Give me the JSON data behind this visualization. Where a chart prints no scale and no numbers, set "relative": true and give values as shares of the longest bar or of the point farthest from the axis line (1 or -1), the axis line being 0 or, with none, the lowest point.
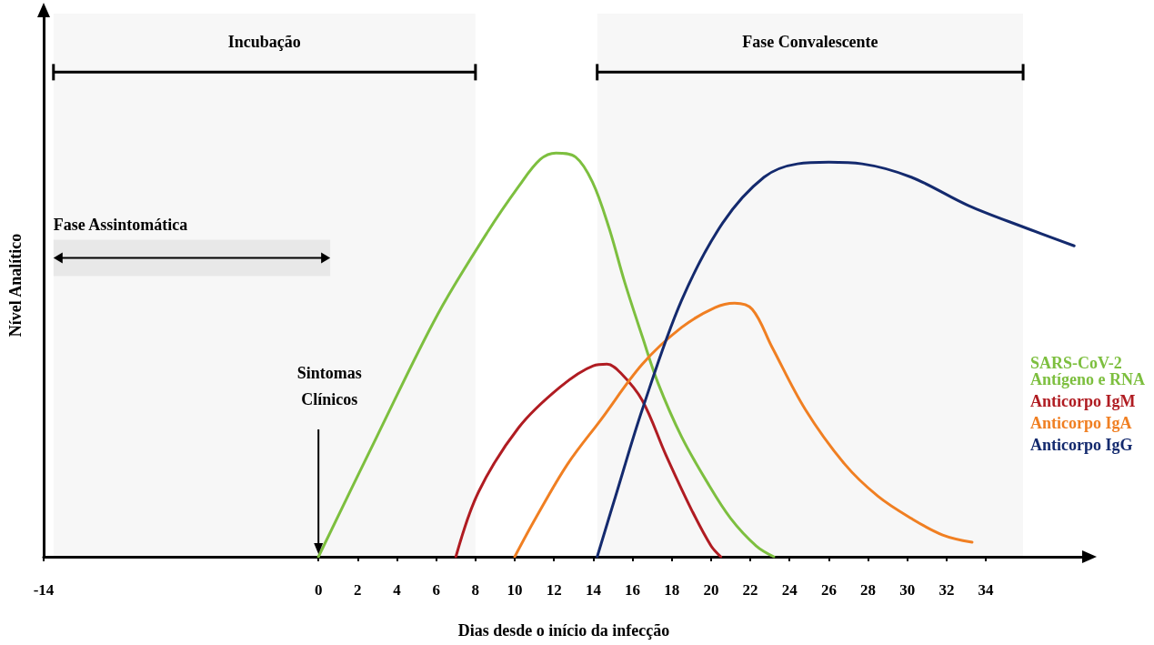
{
  "chart_data": {
    "type": "line",
    "relative": true,
    "xlabel": "Dias desde o início da infecção",
    "ylabel": "Nível Analítico",
    "xlim": [
      -14,
      39
    ],
    "xticks": [
      -14,
      0,
      2,
      4,
      6,
      8,
      10,
      12,
      14,
      16,
      18,
      20,
      22,
      24,
      26,
      28,
      30,
      32,
      34
    ],
    "series": [
      {
        "name": "SARS-CoV-2 Antígeno e RNA",
        "color": "#7dbf3f",
        "x": [
          0,
          3,
          6.07,
          8.56,
          10.2,
          11.3,
          12.1,
          13.1,
          13.96,
          14.8,
          15.6,
          16.5,
          17.3,
          18.5,
          19.8,
          21.0,
          22.3,
          23.2
        ],
        "values": [
          0,
          0.3,
          0.6,
          0.8,
          0.917,
          0.984,
          1,
          0.99,
          0.928,
          0.815,
          0.68,
          0.545,
          0.43,
          0.297,
          0.185,
          0.095,
          0.027,
          0
        ]
      },
      {
        "name": "Anticorpo IgM",
        "color": "#b01c22",
        "x": [
          7.0,
          8.15,
          10.2,
          12.3,
          14.0,
          14.7,
          15.4,
          16.5,
          17.7,
          19.0,
          20.0,
          20.5
        ],
        "values": [
          0,
          0.16,
          0.32,
          0.42,
          0.473,
          0.477,
          0.455,
          0.387,
          0.252,
          0.117,
          0.027,
          0
        ]
      },
      {
        "name": "Anticorpo IgA",
        "color": "#f07f22",
        "x": [
          10.0,
          11.06,
          12.7,
          14.4,
          16.5,
          18.5,
          20.2,
          21.2,
          22.1,
          23.1,
          24.8,
          26.8,
          28.5,
          30.2,
          31.8,
          33.3
        ],
        "values": [
          0,
          0.095,
          0.23,
          0.34,
          0.477,
          0.568,
          0.617,
          0.628,
          0.613,
          0.52,
          0.365,
          0.23,
          0.15,
          0.095,
          0.054,
          0.036
        ]
      },
      {
        "name": "Anticorpo IgG",
        "color": "#142a6e",
        "x": [
          14.2,
          15.2,
          16.5,
          18.5,
          20.6,
          22.7,
          24.4,
          26.0,
          27.7,
          30.2,
          33.1,
          36.0,
          38.5
        ],
        "values": [
          0,
          0.16,
          0.365,
          0.635,
          0.827,
          0.94,
          0.973,
          0.977,
          0.973,
          0.94,
          0.87,
          0.815,
          0.77
        ]
      }
    ],
    "bands": [
      {
        "axis": "x",
        "from": -13.5,
        "to": 8,
        "label": "Incubação"
      },
      {
        "axis": "x",
        "from": 14.2,
        "to": 35.9,
        "label": "Fase Convalescente"
      },
      {
        "axis": "x",
        "from": -13.5,
        "to": 0.6,
        "label": "Fase Assintomática"
      }
    ],
    "annotations": [
      "Sintomas Clínicos"
    ],
    "legend": "right",
    "marker": "none",
    "line_style": "solid",
    "grid": false
  }
}
